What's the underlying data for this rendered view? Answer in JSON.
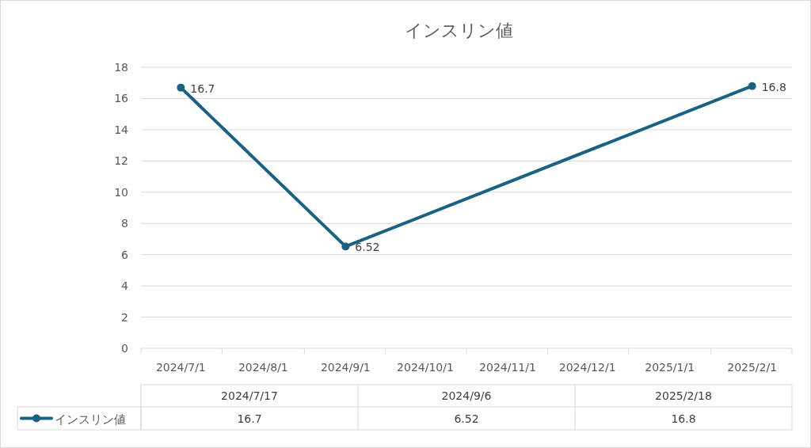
{
  "chart_data": {
    "type": "line",
    "title": "インスリン値",
    "x": [
      "2024-07-01",
      "2024-09-01",
      "2025-02-01"
    ],
    "annotations": [
      "2024/7/17",
      "2024/9/6",
      "2025/2/18",
      "16.7",
      "6.52",
      "16.8"
    ],
    "series": [
      {
        "name": "インスリン値",
        "color": "#1b6282",
        "values": [
          16.7,
          6.52,
          16.8
        ]
      }
    ],
    "xlim": [
      "2024-06-16",
      "2025-02-16"
    ],
    "xticks": [
      {
        "value": "2024-07-01",
        "label": "2024/7/1"
      },
      {
        "value": "2024-08-01",
        "label": "2024/8/1"
      },
      {
        "value": "2024-09-01",
        "label": "2024/9/1"
      },
      {
        "value": "2024-10-01",
        "label": "2024/10/1"
      },
      {
        "value": "2024-11-01",
        "label": "2024/11/1"
      },
      {
        "value": "2024-12-01",
        "label": "2024/12/1"
      },
      {
        "value": "2025-01-01",
        "label": "2025/1/1"
      },
      {
        "value": "2025-02-01",
        "label": "2025/2/1"
      }
    ],
    "ylim": [
      0,
      18
    ],
    "yticks": [
      0,
      2,
      4,
      6,
      8,
      10,
      12,
      14,
      16,
      18
    ],
    "grid": "y",
    "marker": "circle",
    "line_style": "solid",
    "data_labels": true,
    "legend": "bottom"
  }
}
